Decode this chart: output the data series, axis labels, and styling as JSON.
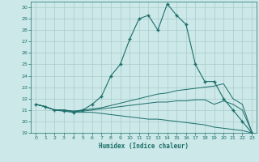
{
  "xlabel": "Humidex (Indice chaleur)",
  "bg_color": "#cce8e8",
  "grid_color": "#aacccc",
  "line_color": "#1a6e6a",
  "xlim": [
    -0.5,
    23.5
  ],
  "ylim": [
    19,
    30.5
  ],
  "xticks": [
    0,
    1,
    2,
    3,
    4,
    5,
    6,
    7,
    8,
    9,
    10,
    11,
    12,
    13,
    14,
    15,
    16,
    17,
    18,
    19,
    20,
    21,
    22,
    23
  ],
  "yticks": [
    19,
    20,
    21,
    22,
    23,
    24,
    25,
    26,
    27,
    28,
    29,
    30
  ],
  "line1_x": [
    0,
    1,
    2,
    3,
    4,
    5,
    6,
    7,
    8,
    9,
    10,
    11,
    12,
    13,
    14,
    15,
    16,
    17,
    18,
    19,
    20,
    21,
    22,
    23
  ],
  "line1_y": [
    21.5,
    21.3,
    21.0,
    20.9,
    20.8,
    21.0,
    21.5,
    22.2,
    24.0,
    25.0,
    27.2,
    29.0,
    29.3,
    28.0,
    30.3,
    29.3,
    28.5,
    25.0,
    23.5,
    23.5,
    22.0,
    21.0,
    20.0,
    19.0
  ],
  "line2_x": [
    0,
    1,
    2,
    3,
    4,
    5,
    6,
    7,
    8,
    9,
    10,
    11,
    12,
    13,
    14,
    15,
    16,
    17,
    18,
    19,
    20,
    21,
    22,
    23
  ],
  "line2_y": [
    21.5,
    21.3,
    21.0,
    21.0,
    20.9,
    21.0,
    21.1,
    21.2,
    21.4,
    21.6,
    21.8,
    22.0,
    22.2,
    22.4,
    22.5,
    22.7,
    22.8,
    22.9,
    23.0,
    23.1,
    23.3,
    22.0,
    21.5,
    19.1
  ],
  "line3_x": [
    0,
    1,
    2,
    3,
    4,
    5,
    6,
    7,
    8,
    9,
    10,
    11,
    12,
    13,
    14,
    15,
    16,
    17,
    18,
    19,
    20,
    21,
    22,
    23
  ],
  "line3_y": [
    21.5,
    21.3,
    21.0,
    21.0,
    20.9,
    20.9,
    21.0,
    21.1,
    21.2,
    21.3,
    21.4,
    21.5,
    21.6,
    21.7,
    21.7,
    21.8,
    21.8,
    21.9,
    21.9,
    21.5,
    21.8,
    21.5,
    21.0,
    19.1
  ],
  "line4_x": [
    0,
    1,
    2,
    3,
    4,
    5,
    6,
    7,
    8,
    9,
    10,
    11,
    12,
    13,
    14,
    15,
    16,
    17,
    18,
    19,
    20,
    21,
    22,
    23
  ],
  "line4_y": [
    21.5,
    21.3,
    21.0,
    21.0,
    20.8,
    20.8,
    20.8,
    20.7,
    20.6,
    20.5,
    20.4,
    20.3,
    20.2,
    20.2,
    20.1,
    20.0,
    19.9,
    19.8,
    19.7,
    19.5,
    19.4,
    19.3,
    19.2,
    19.0
  ]
}
